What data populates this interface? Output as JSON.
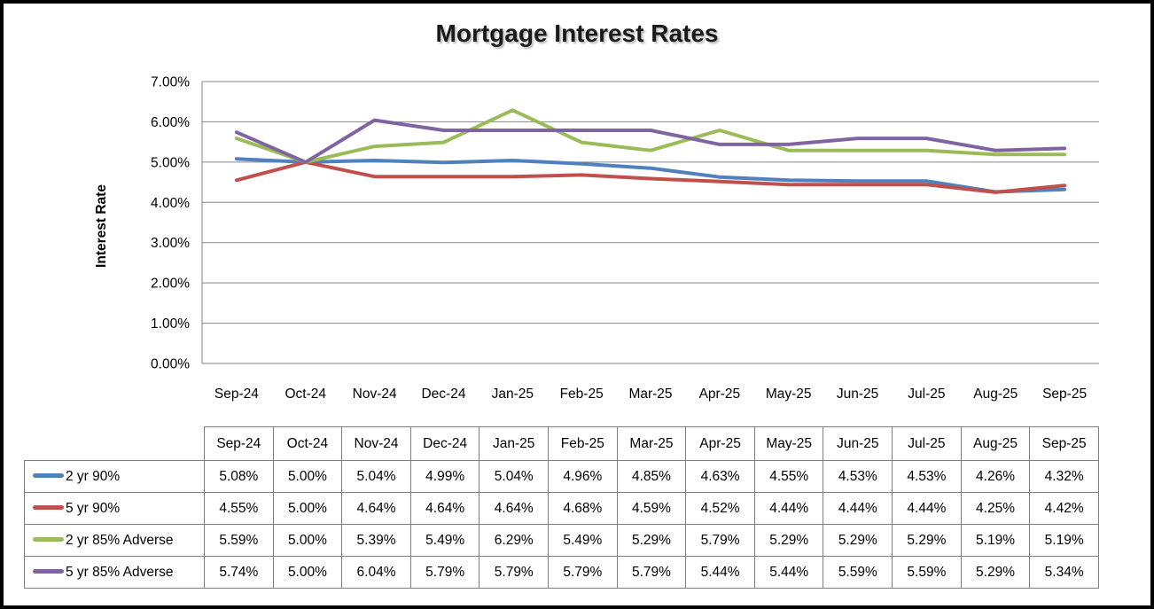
{
  "window": {
    "background": "#FFFFFF",
    "frame_border_color": "#000000"
  },
  "chart_data": {
    "type": "line",
    "title": "Mortgage Interest Rates",
    "xlabel": "",
    "ylabel": "Interest Rate",
    "categories": [
      "Sep-24",
      "Oct-24",
      "Nov-24",
      "Dec-24",
      "Jan-25",
      "Feb-25",
      "Mar-25",
      "Apr-25",
      "May-25",
      "Jun-25",
      "Jul-25",
      "Aug-25",
      "Sep-25"
    ],
    "series": [
      {
        "name": "2 yr 90%",
        "color": "#4F81BD",
        "values": [
          5.08,
          5.0,
          5.04,
          4.99,
          5.04,
          4.96,
          4.85,
          4.63,
          4.55,
          4.53,
          4.53,
          4.26,
          4.32
        ]
      },
      {
        "name": "5 yr 90%",
        "color": "#C0504D",
        "values": [
          4.55,
          5.0,
          4.64,
          4.64,
          4.64,
          4.68,
          4.59,
          4.52,
          4.44,
          4.44,
          4.44,
          4.25,
          4.42
        ]
      },
      {
        "name": "2 yr 85% Adverse",
        "color": "#9BBB59",
        "values": [
          5.59,
          5.0,
          5.39,
          5.49,
          6.29,
          5.49,
          5.29,
          5.79,
          5.29,
          5.29,
          5.29,
          5.19,
          5.19
        ]
      },
      {
        "name": "5 yr 85% Adverse",
        "color": "#8064A2",
        "values": [
          5.74,
          5.0,
          6.04,
          5.79,
          5.79,
          5.79,
          5.79,
          5.44,
          5.44,
          5.59,
          5.59,
          5.29,
          5.34
        ]
      }
    ],
    "ylim": [
      0,
      7
    ],
    "y_tick_values": [
      0,
      1,
      2,
      3,
      4,
      5,
      6,
      7
    ],
    "y_tick_labels": [
      "0.00%",
      "1.00%",
      "2.00%",
      "3.00%",
      "4.00%",
      "5.00%",
      "6.00%",
      "7.00%"
    ],
    "grid": true,
    "legend_position": "data-table-left",
    "gridline_color": "#878787",
    "axis_color": "#808080"
  },
  "table": {
    "value_suffix": "%",
    "value_decimals": 2,
    "border_color": "#7F7F7F"
  }
}
